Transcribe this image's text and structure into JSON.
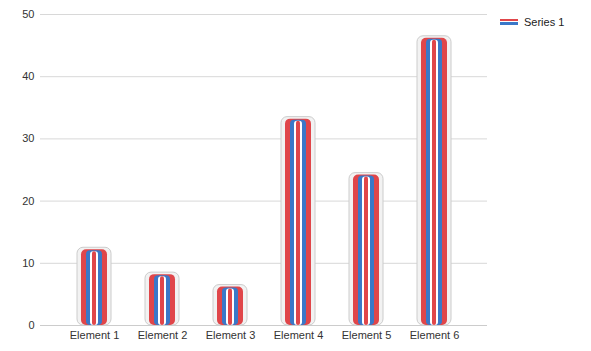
{
  "chart_data": {
    "type": "bar",
    "categories": [
      "Element 1",
      "Element 2",
      "Element 3",
      "Element 4",
      "Element 5",
      "Element 6"
    ],
    "series": [
      {
        "name": "Series 1",
        "color": "#e0464a",
        "values": [
          12.5,
          8.5,
          6.5,
          33.5,
          24.5,
          46.5
        ]
      }
    ],
    "ylim": [
      0,
      50
    ],
    "yticks": [
      0,
      10,
      20,
      30,
      40,
      50
    ],
    "grid": true,
    "legend": "top-right"
  }
}
